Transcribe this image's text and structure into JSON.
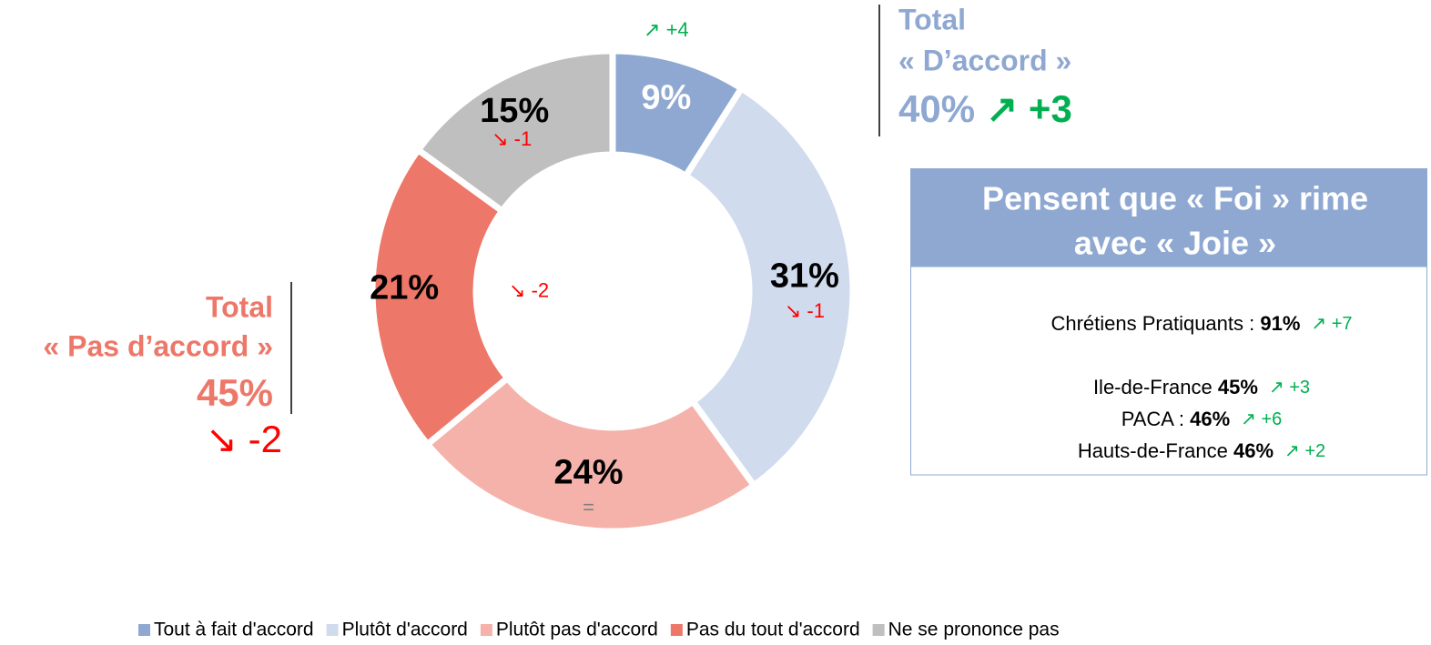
{
  "chart_data": {
    "type": "donut",
    "categories": [
      "Tout à fait d'accord",
      "Plutôt d'accord",
      "Plutôt pas d'accord",
      "Pas du tout d'accord",
      "Ne se prononce pas"
    ],
    "values": [
      9,
      31,
      24,
      21,
      15
    ],
    "value_labels": [
      "9%",
      "31%",
      "24%",
      "21%",
      "15%"
    ],
    "colors": [
      "#8fa8d1",
      "#d0dbed",
      "#f4b2aa",
      "#ed7769",
      "#bfbfbf"
    ],
    "changes": [
      "↗ +4",
      "↘ -1",
      "=",
      "↘ -2",
      "↘ -1"
    ],
    "change_colors": [
      "#00b050",
      "#ff0000",
      "#7f7f7f",
      "#ff0000",
      "#ff0000"
    ],
    "total_agree": {
      "title": "Total",
      "subtitle": "« D’accord »",
      "value": "40%",
      "change": "↗ +3"
    },
    "total_disagree": {
      "title": "Total",
      "subtitle": "« Pas d’accord »",
      "value": "45%",
      "change": "↘ -2"
    },
    "box": {
      "title": [
        "Pensent que « Foi » rime",
        "avec « Joie »"
      ],
      "rows": [
        {
          "label": "Chrétiens Pratiquants : ",
          "value": "91%",
          "change": "↗ +7"
        },
        {
          "label": "Ile-de-France ",
          "value": "45%",
          "change": "↗ +3"
        },
        {
          "label": "PACA : ",
          "value": "46%",
          "change": "↗ +6"
        },
        {
          "label": "Hauts-de-France ",
          "value": "46%",
          "change": "↗ +2"
        }
      ]
    }
  }
}
